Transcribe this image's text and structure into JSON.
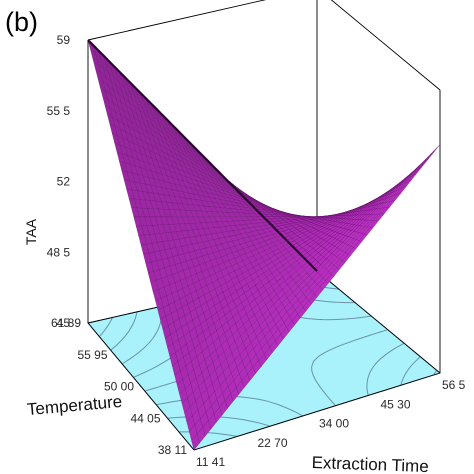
{
  "panel_label": "(b)",
  "chart_data": {
    "type": "surface3d",
    "title": "",
    "zlabel": "TAA",
    "xlabel": "Extraction Time",
    "ylabel": "Temperature",
    "z_ticks": [
      "45",
      "48 5",
      "52",
      "55 5",
      "59"
    ],
    "x_ticks": [
      "11 41",
      "22 70",
      "34 00",
      "45 30",
      "56 5"
    ],
    "y_ticks": [
      "38 11",
      "44 05",
      "50 00",
      "55 95",
      "61 89"
    ],
    "zlim": [
      45,
      59
    ],
    "xlim": [
      11.41,
      56.5
    ],
    "ylim": [
      38.11,
      61.89
    ],
    "corner_values": [
      {
        "extraction_time": 11.41,
        "temperature": 38.11,
        "taa": 45.0
      },
      {
        "extraction_time": 56.5,
        "temperature": 38.11,
        "taa": 56.3
      },
      {
        "extraction_time": 11.41,
        "temperature": 61.89,
        "taa": 59.0
      },
      {
        "extraction_time": 56.5,
        "temperature": 61.89,
        "taa": 45.0
      }
    ],
    "surface_color": "#b02cb8",
    "mesh_color": "#5a0f60",
    "floor_color": "#a9f1fb",
    "contour_color": "#6a93a8"
  }
}
